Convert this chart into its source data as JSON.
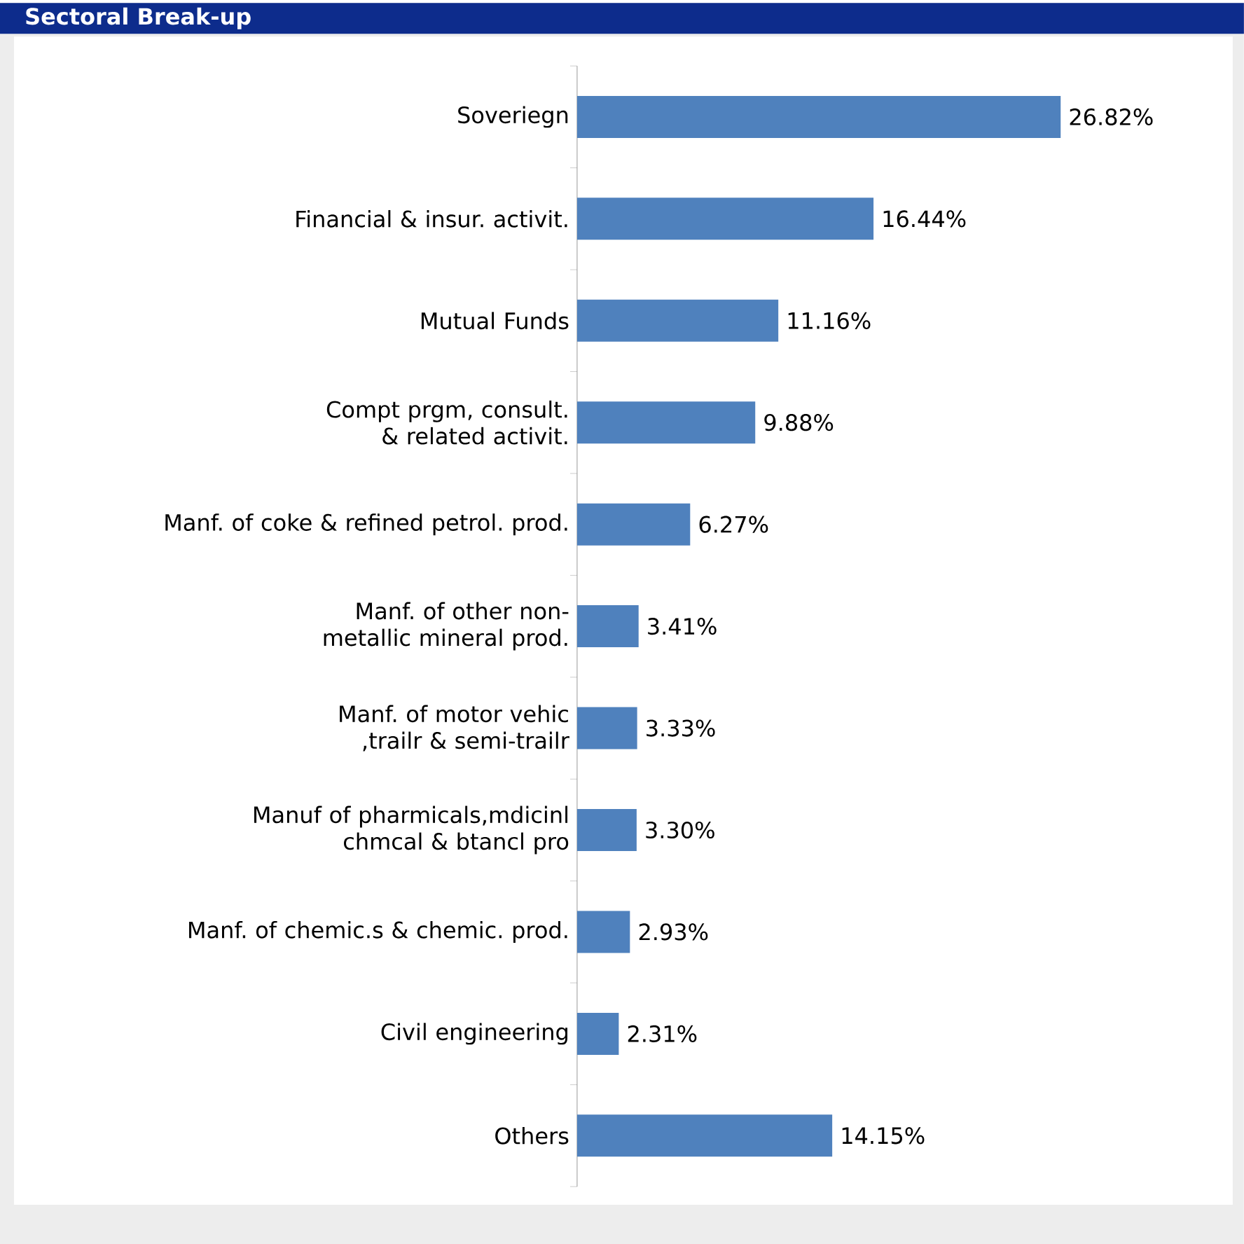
{
  "chart_data": {
    "type": "bar",
    "orientation": "horizontal",
    "title": "Sectoral Break-up",
    "categories": [
      "Soveriegn",
      "Financial & insur. activit.",
      "Mutual Funds",
      "Compt prgm, consult. & related activit.",
      "Manf. of coke & refined petrol. prod.",
      "Manf. of other non-metallic mineral prod.",
      "Manf. of motor vehic ,trailr & semi-trailr",
      "Manuf of pharmicals,mdicinl chmcal & btancl pro",
      "Manf. of chemic.s & chemic. prod.",
      "Civil engineering",
      "Others"
    ],
    "values": [
      26.82,
      16.44,
      11.16,
      9.88,
      6.27,
      3.41,
      3.33,
      3.3,
      2.93,
      2.31,
      14.15
    ],
    "value_labels": [
      "26.82%",
      "16.44%",
      "11.16%",
      "9.88%",
      "6.27%",
      "3.41%",
      "3.33%",
      "3.30%",
      "2.93%",
      "2.31%",
      "14.15%"
    ],
    "color": "#4f81bd"
  }
}
